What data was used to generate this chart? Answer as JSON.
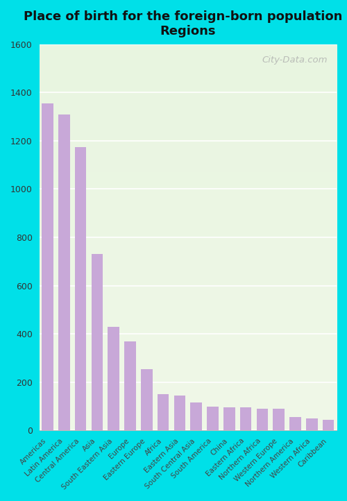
{
  "title": "Place of birth for the foreign-born population -\nRegions",
  "categories": [
    "Americas",
    "Latin America",
    "Central America",
    "Asia",
    "South Eastern Asia",
    "Europe",
    "Eastern Europe",
    "Africa",
    "Eastern Asia",
    "South Central Asia",
    "South America",
    "China",
    "Eastern Africa",
    "Northern Africa",
    "Western Europe",
    "Northern America",
    "Western Africa",
    "Caribbean"
  ],
  "values": [
    1355,
    1310,
    1175,
    730,
    430,
    370,
    255,
    150,
    145,
    115,
    100,
    95,
    95,
    90,
    90,
    55,
    50,
    45
  ],
  "bar_color": "#c8a8d8",
  "fig_bg_color": "#00e0e8",
  "plot_bg_top": "#e8f5e0",
  "plot_bg_bottom": "#f0f8e8",
  "grid_color": "#ffffff",
  "ylim": [
    0,
    1600
  ],
  "yticks": [
    0,
    200,
    400,
    600,
    800,
    1000,
    1200,
    1400,
    1600
  ],
  "title_fontsize": 13,
  "watermark": "City-Data.com"
}
